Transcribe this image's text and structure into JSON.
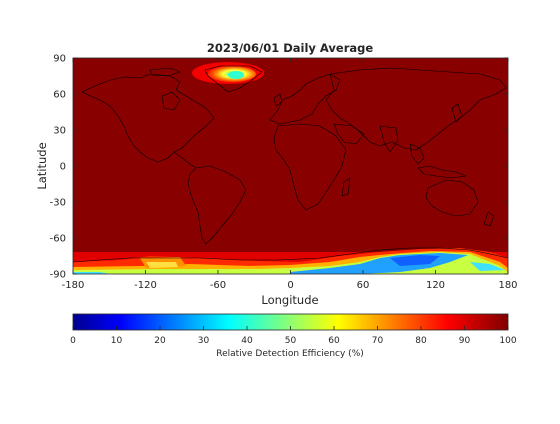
{
  "map": {
    "title": "2023/06/01 Daily Average",
    "xlabel": "Longitude",
    "ylabel": "Latitude",
    "xticks": [
      -180,
      -120,
      -60,
      0,
      60,
      120,
      180
    ],
    "yticks": [
      90,
      60,
      30,
      0,
      -30,
      -60,
      -90
    ],
    "xlim": [
      -180,
      180
    ],
    "ylim": [
      -90,
      90
    ],
    "background_value": 100,
    "colormap": "jet",
    "colorbar": {
      "label": "Relative Detection Efficiency (%)",
      "ticks": [
        0,
        10,
        20,
        30,
        40,
        50,
        60,
        70,
        80,
        90,
        100
      ],
      "range": [
        0,
        100
      ]
    },
    "colors": {
      "jet_stops": [
        "#00008f",
        "#0000ff",
        "#00ffff",
        "#ffff00",
        "#ff0000",
        "#800000"
      ],
      "coastline": "#000000",
      "axis": "#262626"
    }
  }
}
